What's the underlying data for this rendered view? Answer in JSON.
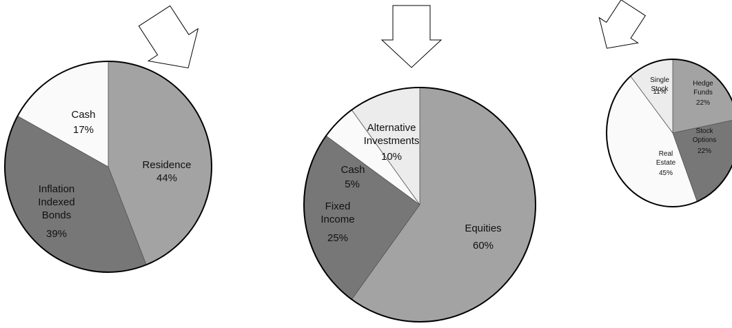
{
  "colors": {
    "light_gray": "#a3a3a3",
    "dark_gray": "#777777",
    "white": "#fafafa",
    "pale_gray": "#ececec",
    "outline": "#000000"
  },
  "icons": [
    "down-arrow-icon"
  ],
  "chart_data": [
    {
      "type": "pie",
      "title": "",
      "slices": [
        {
          "label": "Residence",
          "value": 44,
          "value_label": "44%",
          "color": "#a3a3a3"
        },
        {
          "label": "Inflation Indexed Bonds",
          "value": 39,
          "value_label": "39%",
          "color": "#777777"
        },
        {
          "label": "Cash",
          "value": 17,
          "value_label": "17%",
          "color": "#fafafa"
        }
      ]
    },
    {
      "type": "pie",
      "title": "",
      "slices": [
        {
          "label": "Equities",
          "value": 60,
          "value_label": "60%",
          "color": "#a3a3a3"
        },
        {
          "label": "Fixed Income",
          "value": 25,
          "value_label": "25%",
          "color": "#777777"
        },
        {
          "label": "Cash",
          "value": 5,
          "value_label": "5%",
          "color": "#fafafa"
        },
        {
          "label": "Alternative Investments",
          "value": 10,
          "value_label": "10%",
          "color": "#ececec"
        }
      ]
    },
    {
      "type": "pie",
      "title": "",
      "slices": [
        {
          "label": "Hedge Funds",
          "value": 22,
          "value_label": "22%",
          "color": "#a3a3a3"
        },
        {
          "label": "Stock Options",
          "value": 22,
          "value_label": "22%",
          "color": "#777777"
        },
        {
          "label": "Real Estate",
          "value": 45,
          "value_label": "45%",
          "color": "#fafafa"
        },
        {
          "label": "Single Stock",
          "value": 11,
          "value_label": "11%",
          "color": "#ececec"
        }
      ]
    }
  ]
}
